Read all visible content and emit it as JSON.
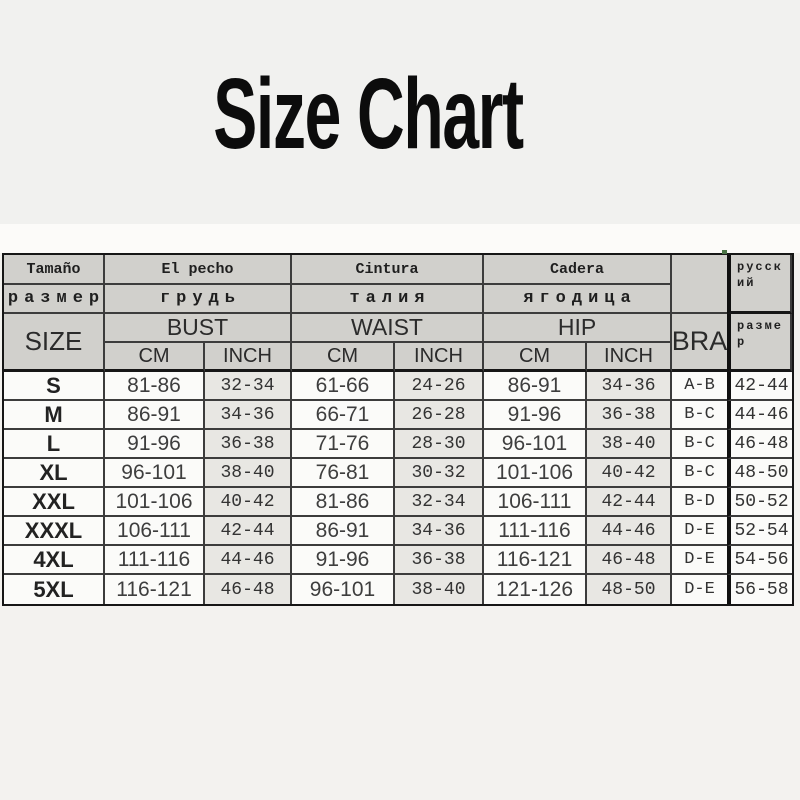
{
  "title": "Size Chart",
  "colors": {
    "header_bg": "#d1d0cc",
    "inch_column_bg": "#e8e7e3",
    "cell_bg": "#fbfbf9",
    "border": "#3c3c3c",
    "page_bg": "#f3f2ef"
  },
  "chart_data": {
    "type": "table",
    "title": "Size Chart",
    "header": {
      "size_es": "Tamaño",
      "bust_es": "El pecho",
      "waist_es": "Cintura",
      "hip_es": "Cadera",
      "russian_label": "русский",
      "size_ru": "размер",
      "bust_ru": "грудь",
      "waist_ru": "талия",
      "hip_ru": "ягодица",
      "size_en": "SIZE",
      "bust_en": "BUST",
      "waist_en": "WAIST",
      "hip_en": "HIP",
      "bra": "BRA",
      "russian_size_label": "размер",
      "cm": "CM",
      "inch": "INCH"
    },
    "rows": [
      {
        "size": "S",
        "bust_cm": "81-86",
        "bust_inch": "32-34",
        "waist_cm": "61-66",
        "waist_inch": "24-26",
        "hip_cm": "86-91",
        "hip_inch": "34-36",
        "bra": "A-B",
        "ru": "42-44"
      },
      {
        "size": "M",
        "bust_cm": "86-91",
        "bust_inch": "34-36",
        "waist_cm": "66-71",
        "waist_inch": "26-28",
        "hip_cm": "91-96",
        "hip_inch": "36-38",
        "bra": "B-C",
        "ru": "44-46"
      },
      {
        "size": "L",
        "bust_cm": "91-96",
        "bust_inch": "36-38",
        "waist_cm": "71-76",
        "waist_inch": "28-30",
        "hip_cm": "96-101",
        "hip_inch": "38-40",
        "bra": "B-C",
        "ru": "46-48"
      },
      {
        "size": "XL",
        "bust_cm": "96-101",
        "bust_inch": "38-40",
        "waist_cm": "76-81",
        "waist_inch": "30-32",
        "hip_cm": "101-106",
        "hip_inch": "40-42",
        "bra": "B-C",
        "ru": "48-50"
      },
      {
        "size": "XXL",
        "bust_cm": "101-106",
        "bust_inch": "40-42",
        "waist_cm": "81-86",
        "waist_inch": "32-34",
        "hip_cm": "106-111",
        "hip_inch": "42-44",
        "bra": "B-D",
        "ru": "50-52"
      },
      {
        "size": "XXXL",
        "bust_cm": "106-111",
        "bust_inch": "42-44",
        "waist_cm": "86-91",
        "waist_inch": "34-36",
        "hip_cm": "111-116",
        "hip_inch": "44-46",
        "bra": "D-E",
        "ru": "52-54"
      },
      {
        "size": "4XL",
        "bust_cm": "111-116",
        "bust_inch": "44-46",
        "waist_cm": "91-96",
        "waist_inch": "36-38",
        "hip_cm": "116-121",
        "hip_inch": "46-48",
        "bra": "D-E",
        "ru": "54-56"
      },
      {
        "size": "5XL",
        "bust_cm": "116-121",
        "bust_inch": "46-48",
        "waist_cm": "96-101",
        "waist_inch": "38-40",
        "hip_cm": "121-126",
        "hip_inch": "48-50",
        "bra": "D-E",
        "ru": "56-58"
      }
    ]
  }
}
